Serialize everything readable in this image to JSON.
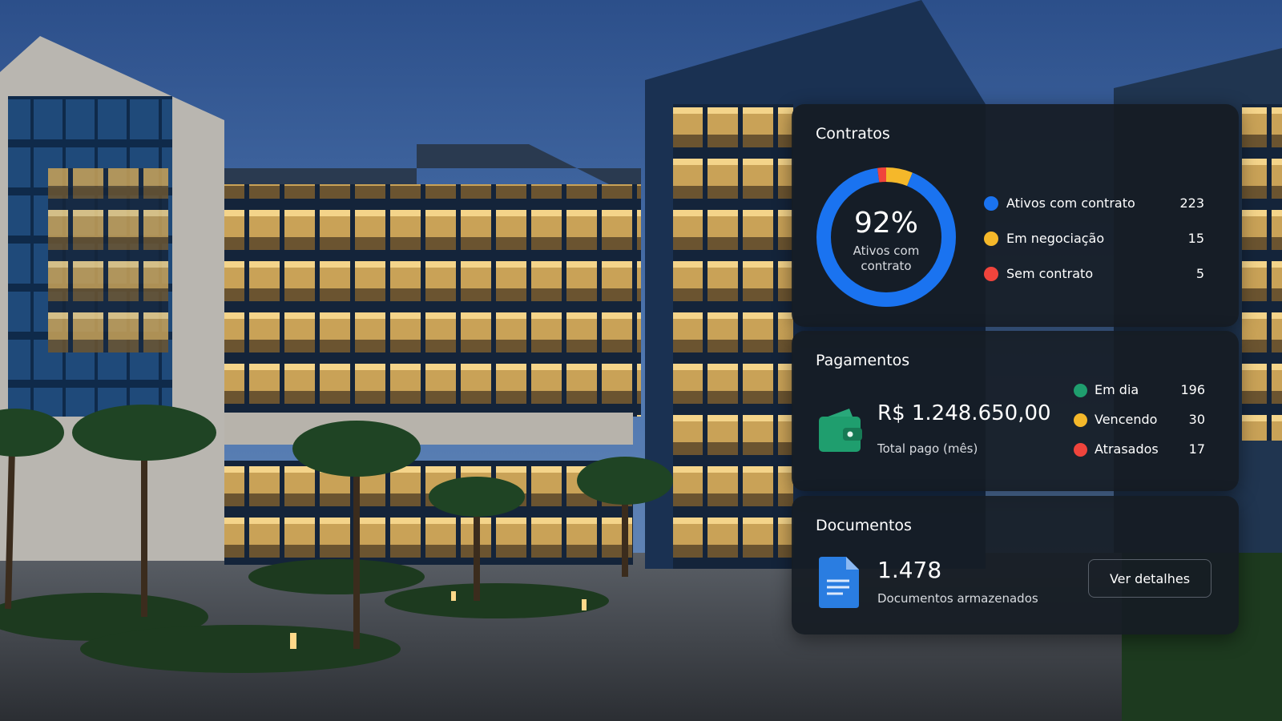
{
  "contracts": {
    "title": "Contratos",
    "percent": "92%",
    "percent_label": "Ativos com contrato",
    "items": [
      {
        "label": "Ativos com contrato",
        "value": 223,
        "color": "#1a73f0"
      },
      {
        "label": "Em negociação",
        "value": 15,
        "color": "#f5b82a"
      },
      {
        "label": "Sem contrato",
        "value": 5,
        "color": "#f0443c"
      }
    ]
  },
  "payments": {
    "title": "Pagamentos",
    "amount": "R$ 1.248.650,00",
    "amount_label": "Total pago (mês)",
    "items": [
      {
        "label": "Em dia",
        "value": 196,
        "color": "#1f9e6e"
      },
      {
        "label": "Vencendo",
        "value": 30,
        "color": "#f5b82a"
      },
      {
        "label": "Atrasados",
        "value": 17,
        "color": "#f0443c"
      }
    ]
  },
  "documents": {
    "title": "Documentos",
    "count": "1.478",
    "count_label": "Documentos armazenados",
    "button": "Ver detalhes"
  }
}
